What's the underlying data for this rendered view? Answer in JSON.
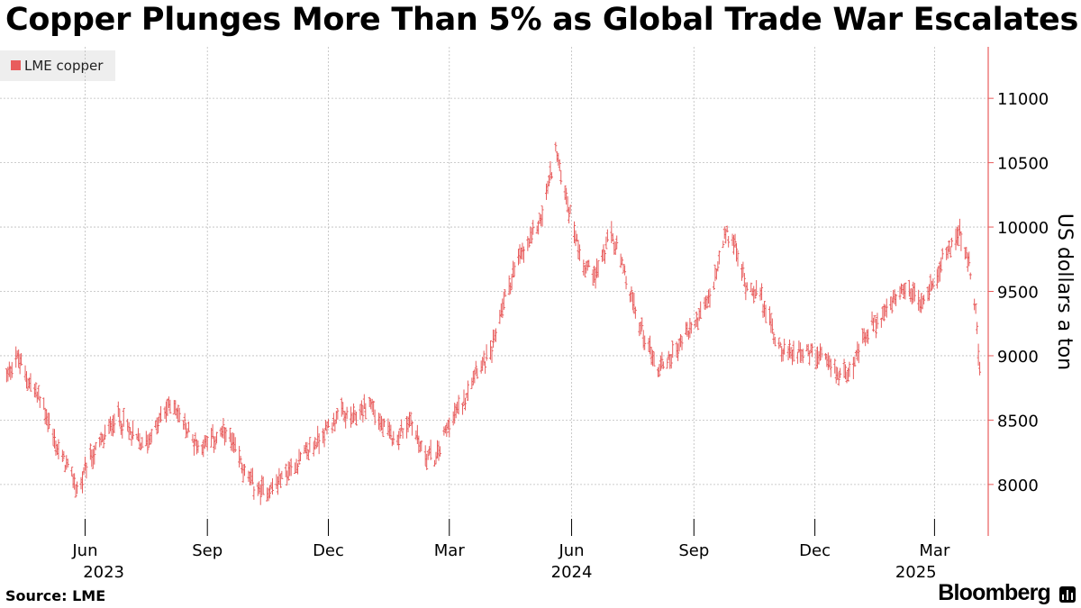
{
  "title": "Copper Plunges More Than 5% as Global Trade War Escalates",
  "source": "Source: LME",
  "brand": "Bloomberg",
  "chart_data": {
    "type": "ohlc",
    "title": "Copper Plunges More Than 5% as Global Trade War Escalates",
    "ylabel": "US dollars a ton",
    "xlabel": "",
    "ylim": [
      7600,
      11400
    ],
    "yticks": [
      8000,
      8500,
      9000,
      9500,
      10000,
      10500,
      11000
    ],
    "grid": true,
    "legend": {
      "position": "top-left",
      "entries": [
        {
          "name": "LME copper",
          "color": "#e85c5c"
        }
      ]
    },
    "x_start": "2023-03-29",
    "x_end": "2025-04-07",
    "month_ticks": [
      {
        "date": "2023-06-01",
        "label": "Jun"
      },
      {
        "date": "2023-09-01",
        "label": "Sep"
      },
      {
        "date": "2023-12-01",
        "label": "Dec"
      },
      {
        "date": "2024-03-01",
        "label": "Mar"
      },
      {
        "date": "2024-06-01",
        "label": "Jun"
      },
      {
        "date": "2024-09-01",
        "label": "Sep"
      },
      {
        "date": "2024-12-01",
        "label": "Dec"
      },
      {
        "date": "2025-03-01",
        "label": "Mar"
      }
    ],
    "year_labels": [
      {
        "date": "2023-06-15",
        "label": "2023"
      },
      {
        "date": "2024-06-01",
        "label": "2024"
      },
      {
        "date": "2025-02-15",
        "label": "2025"
      }
    ],
    "series": [
      {
        "name": "LME copper",
        "color": "#e85c5c",
        "dates": [
          "2023-04-01",
          "2023-04-10",
          "2023-04-20",
          "2023-05-01",
          "2023-05-10",
          "2023-05-20",
          "2023-05-27",
          "2023-06-05",
          "2023-06-15",
          "2023-06-25",
          "2023-07-05",
          "2023-07-15",
          "2023-07-25",
          "2023-08-05",
          "2023-08-15",
          "2023-08-25",
          "2023-09-05",
          "2023-09-15",
          "2023-09-25",
          "2023-10-01",
          "2023-10-10",
          "2023-10-20",
          "2023-11-01",
          "2023-11-10",
          "2023-11-20",
          "2023-12-01",
          "2023-12-10",
          "2023-12-20",
          "2024-01-01",
          "2024-01-10",
          "2024-01-20",
          "2024-02-01",
          "2024-02-10",
          "2024-02-20",
          "2024-03-01",
          "2024-03-10",
          "2024-03-20",
          "2024-04-01",
          "2024-04-10",
          "2024-04-20",
          "2024-05-01",
          "2024-05-10",
          "2024-05-20",
          "2024-06-01",
          "2024-06-10",
          "2024-06-20",
          "2024-07-01",
          "2024-07-10",
          "2024-07-20",
          "2024-08-01",
          "2024-08-05",
          "2024-08-15",
          "2024-08-25",
          "2024-09-05",
          "2024-09-15",
          "2024-09-25",
          "2024-09-30",
          "2024-10-10",
          "2024-10-20",
          "2024-11-01",
          "2024-11-10",
          "2024-11-20",
          "2024-12-01",
          "2024-12-10",
          "2024-12-20",
          "2024-12-31",
          "2025-01-10",
          "2025-01-20",
          "2025-02-01",
          "2025-02-10",
          "2025-02-20",
          "2025-03-01",
          "2025-03-10",
          "2025-03-20",
          "2025-03-26",
          "2025-04-01",
          "2025-04-04"
        ],
        "values": [
          8800,
          9000,
          8800,
          8600,
          8300,
          8100,
          7950,
          8200,
          8350,
          8550,
          8400,
          8300,
          8450,
          8650,
          8450,
          8300,
          8350,
          8400,
          8200,
          8050,
          7950,
          7980,
          8100,
          8200,
          8300,
          8450,
          8550,
          8500,
          8650,
          8450,
          8350,
          8500,
          8250,
          8200,
          8500,
          8600,
          8900,
          9000,
          9400,
          9700,
          9900,
          10100,
          10600,
          10050,
          9700,
          9650,
          9950,
          9650,
          9300,
          9000,
          8900,
          9000,
          9150,
          9300,
          9500,
          9950,
          9900,
          9550,
          9500,
          9150,
          9000,
          9050,
          9000,
          8950,
          8850,
          8950,
          9200,
          9300,
          9450,
          9500,
          9400,
          9600,
          9800,
          9950,
          9750,
          9350,
          8900
        ]
      }
    ]
  }
}
